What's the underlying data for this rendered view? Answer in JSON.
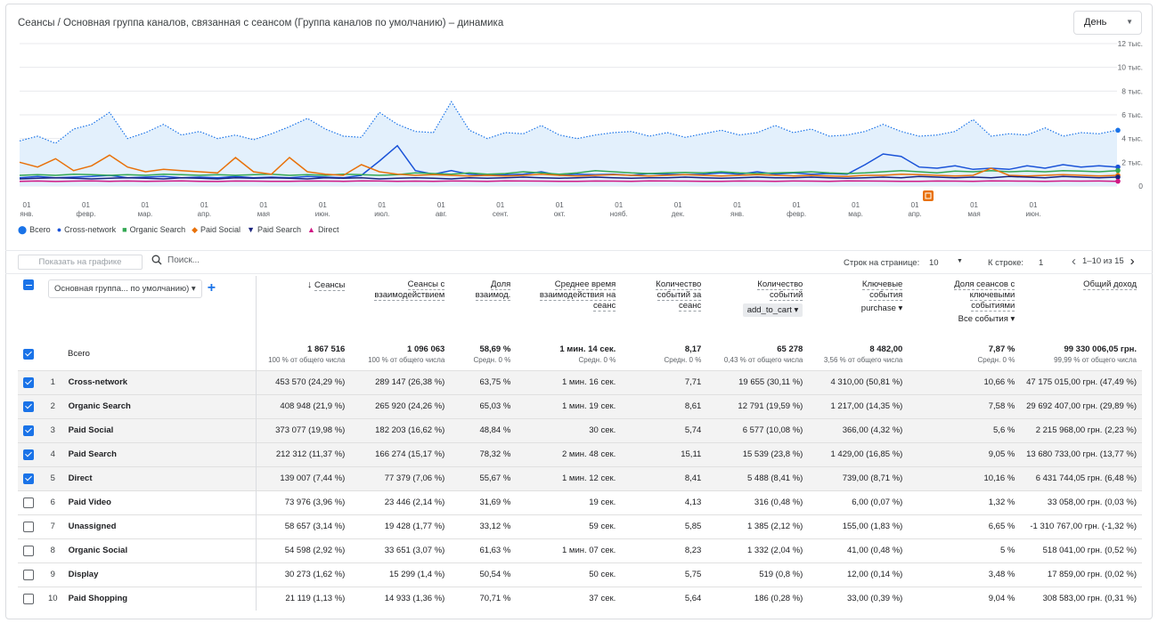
{
  "chart_title": "Сеансы / Основная группа каналов, связанная с сеансом (Группа каналов по умолчанию) – динамика",
  "period_select": "День",
  "chart_data": {
    "type": "line",
    "y_ticks": [
      "0",
      "2 тыс.",
      "4 тыс.",
      "6 тыс.",
      "8 тыс.",
      "10 тыс.",
      "12 тыс."
    ],
    "ylim": [
      0,
      12000
    ],
    "x_ticks": [
      {
        "day": "01",
        "month": "янв."
      },
      {
        "day": "01",
        "month": "февр."
      },
      {
        "day": "01",
        "month": "мар."
      },
      {
        "day": "01",
        "month": "апр."
      },
      {
        "day": "01",
        "month": "мая"
      },
      {
        "day": "01",
        "month": "июн."
      },
      {
        "day": "01",
        "month": "июл."
      },
      {
        "day": "01",
        "month": "авг."
      },
      {
        "day": "01",
        "month": "сент."
      },
      {
        "day": "01",
        "month": "окт."
      },
      {
        "day": "01",
        "month": "нояб."
      },
      {
        "day": "01",
        "month": "дек."
      },
      {
        "day": "01",
        "month": "янв."
      },
      {
        "day": "01",
        "month": "февр."
      },
      {
        "day": "01",
        "month": "мар."
      },
      {
        "day": "01",
        "month": "апр."
      },
      {
        "day": "01",
        "month": "мая"
      },
      {
        "day": "01",
        "month": "июн."
      }
    ],
    "series": [
      {
        "name": "Всего",
        "color": "#1a73e8",
        "marker": "teardrop",
        "style": "dotted-area",
        "values": [
          3800,
          4200,
          3600,
          4800,
          5200,
          6200,
          4000,
          4500,
          5200,
          4300,
          4600,
          4000,
          4300,
          3900,
          4400,
          5000,
          5700,
          4800,
          4200,
          4100,
          6200,
          5200,
          4600,
          4500,
          7100,
          4700,
          4000,
          4500,
          4400,
          5100,
          4300,
          4000,
          4300,
          4500,
          4600,
          4200,
          4500,
          4100,
          4400,
          4700,
          4300,
          4500,
          5100,
          4500,
          4800,
          4200,
          4300,
          4600,
          5200,
          4600,
          4200,
          4300,
          4600,
          5600,
          4200,
          4400,
          4300,
          4900,
          4200,
          4500,
          4400,
          4700
        ]
      },
      {
        "name": "Cross-network",
        "color": "#1a53d8",
        "marker": "circle",
        "values": [
          700,
          800,
          700,
          750,
          800,
          900,
          700,
          750,
          800,
          700,
          750,
          700,
          800,
          700,
          750,
          700,
          800,
          750,
          700,
          900,
          2100,
          3400,
          1300,
          1000,
          1300,
          1000,
          900,
          950,
          1000,
          1200,
          900,
          1000,
          950,
          1000,
          900,
          1050,
          1000,
          950,
          1000,
          1100,
          1000,
          1200,
          1000,
          1100,
          1000,
          1050,
          1000,
          1800,
          2700,
          2500,
          1600,
          1500,
          1700,
          1400,
          1500,
          1400,
          1700,
          1500,
          1800,
          1600,
          1700,
          1600
        ]
      },
      {
        "name": "Organic Search",
        "color": "#34a853",
        "marker": "square",
        "values": [
          900,
          950,
          900,
          1000,
          950,
          900,
          950,
          900,
          1000,
          950,
          900,
          950,
          900,
          950,
          1000,
          900,
          950,
          900,
          1000,
          950,
          900,
          950,
          1100,
          1050,
          1000,
          1100,
          1000,
          1050,
          1200,
          1100,
          1000,
          1100,
          1300,
          1200,
          1100,
          1050,
          1100,
          1150,
          1100,
          1200,
          1100,
          1050,
          1100,
          1150,
          1200,
          1100,
          1050,
          1100,
          1200,
          1300,
          1200,
          1100,
          1250,
          1200,
          1300,
          1200,
          1250,
          1200,
          1300,
          1250,
          1200,
          1300
        ]
      },
      {
        "name": "Paid Social",
        "color": "#e8710a",
        "marker": "diamond",
        "values": [
          2000,
          1600,
          2300,
          1300,
          1700,
          2600,
          1600,
          1200,
          1400,
          1300,
          1200,
          1100,
          2400,
          1200,
          1000,
          2400,
          1200,
          1000,
          900,
          1800,
          1200,
          1000,
          900,
          950,
          900,
          850,
          900,
          850,
          900,
          1000,
          900,
          850,
          900,
          950,
          900,
          850,
          900,
          950,
          900,
          850,
          900,
          950,
          900,
          850,
          900,
          850,
          800,
          900,
          900,
          1000,
          950,
          900,
          850,
          900,
          1500,
          900,
          850,
          900,
          950,
          900,
          850,
          900
        ]
      },
      {
        "name": "Paid Search",
        "color": "#1a237e",
        "marker": "triangle-down",
        "values": [
          600,
          650,
          700,
          650,
          600,
          650,
          700,
          650,
          600,
          700,
          650,
          600,
          700,
          650,
          700,
          650,
          600,
          700,
          650,
          700,
          600,
          650,
          700,
          650,
          600,
          700,
          650,
          700,
          750,
          700,
          650,
          700,
          750,
          700,
          650,
          700,
          700,
          750,
          700,
          650,
          700,
          750,
          700,
          700,
          750,
          700,
          650,
          700,
          750,
          700,
          800,
          750,
          700,
          750,
          700,
          800,
          750,
          700,
          800,
          750,
          700,
          750
        ]
      },
      {
        "name": "Direct",
        "color": "#d01884",
        "marker": "triangle-up",
        "values": [
          400,
          420,
          380,
          410,
          430,
          400,
          420,
          390,
          410,
          430,
          400,
          380,
          420,
          410,
          400,
          390,
          420,
          410,
          400,
          430,
          420,
          400,
          410,
          390,
          420,
          410,
          400,
          430,
          420,
          410,
          400,
          390,
          420,
          410,
          400,
          430,
          420,
          410,
          400,
          390,
          420,
          410,
          400,
          420,
          410,
          400,
          430,
          420,
          410,
          400,
          390,
          420,
          410,
          400,
          430,
          420,
          410,
          400,
          420,
          410,
          420,
          400
        ]
      }
    ],
    "legend": "bottom-left",
    "annotation": "event-marker"
  },
  "toolbar": {
    "show_on_chart": "Показать на графике",
    "search_placeholder": "Поиск...",
    "rows_per_page_label": "Строк на странице:",
    "rows_per_page": "10",
    "goto_label": "К строке:",
    "goto_value": "1",
    "range": "1–10 из 15"
  },
  "table": {
    "dimension_select": "Основная группа... по умолчанию)",
    "columns": [
      {
        "l1": "Сеансы",
        "l2": "",
        "l3": "",
        "sorted": true
      },
      {
        "l1": "Сеансы с",
        "l2": "взаимодействием",
        "l3": ""
      },
      {
        "l1": "Доля",
        "l2": "взаимод.",
        "l3": ""
      },
      {
        "l1": "Среднее время",
        "l2": "взаимодействия на",
        "l3": "сеанс"
      },
      {
        "l1": "Количество",
        "l2": "событий за",
        "l3": "сеанс"
      },
      {
        "l1": "Количество",
        "l2": "событий",
        "l3": "",
        "dropdown": "add_to_cart",
        "boxed": true
      },
      {
        "l1": "Ключевые",
        "l2": "события",
        "l3": "",
        "dropdown": "purchase"
      },
      {
        "l1": "Доля сеансов с",
        "l2": "ключевыми",
        "l3": "событиями",
        "dropdown": "Все события"
      },
      {
        "l1": "Общий доход",
        "l2": "",
        "l3": ""
      }
    ],
    "total_label": "Всего",
    "totals": [
      {
        "v": "1 867 516",
        "s": "100 % от общего числа"
      },
      {
        "v": "1 096 063",
        "s": "100 % от общего числа"
      },
      {
        "v": "58,69 %",
        "s": "Средн. 0 %"
      },
      {
        "v": "1 мин. 14 сек.",
        "s": "Средн. 0 %"
      },
      {
        "v": "8,17",
        "s": "Средн. 0 %"
      },
      {
        "v": "65 278",
        "s": "0,43 % от общего числа"
      },
      {
        "v": "8 482,00",
        "s": "3,56 % от общего числа"
      },
      {
        "v": "7,87 %",
        "s": "Средн. 0 %"
      },
      {
        "v": "99 330 006,05 грн.",
        "s": "99,99 % от общего числа"
      }
    ],
    "rows": [
      {
        "i": "1",
        "ch": "Cross-network",
        "sel": true,
        "c": [
          "453 570 (24,29 %)",
          "289 147 (26,38 %)",
          "63,75 %",
          "1 мин. 16 сек.",
          "7,71",
          "19 655 (30,11 %)",
          "4 310,00 (50,81 %)",
          "10,66 %",
          "47 175 015,00 грн. (47,49 %)"
        ]
      },
      {
        "i": "2",
        "ch": "Organic Search",
        "sel": true,
        "c": [
          "408 948 (21,9 %)",
          "265 920 (24,26 %)",
          "65,03 %",
          "1 мин. 19 сек.",
          "8,61",
          "12 791 (19,59 %)",
          "1 217,00 (14,35 %)",
          "7,58 %",
          "29 692 407,00 грн. (29,89 %)"
        ]
      },
      {
        "i": "3",
        "ch": "Paid Social",
        "sel": true,
        "c": [
          "373 077 (19,98 %)",
          "182 203 (16,62 %)",
          "48,84 %",
          "30 сек.",
          "5,74",
          "6 577 (10,08 %)",
          "366,00 (4,32 %)",
          "5,6 %",
          "2 215 968,00 грн. (2,23 %)"
        ]
      },
      {
        "i": "4",
        "ch": "Paid Search",
        "sel": true,
        "c": [
          "212 312 (11,37 %)",
          "166 274 (15,17 %)",
          "78,32 %",
          "2 мин. 48 сек.",
          "15,11",
          "15 539 (23,8 %)",
          "1 429,00 (16,85 %)",
          "9,05 %",
          "13 680 733,00 грн. (13,77 %)"
        ]
      },
      {
        "i": "5",
        "ch": "Direct",
        "sel": true,
        "c": [
          "139 007 (7,44 %)",
          "77 379 (7,06 %)",
          "55,67 %",
          "1 мин. 12 сек.",
          "8,41",
          "5 488 (8,41 %)",
          "739,00 (8,71 %)",
          "10,16 %",
          "6 431 744,05 грн. (6,48 %)"
        ]
      },
      {
        "i": "6",
        "ch": "Paid Video",
        "sel": false,
        "c": [
          "73 976 (3,96 %)",
          "23 446 (2,14 %)",
          "31,69 %",
          "19 сек.",
          "4,13",
          "316 (0,48 %)",
          "6,00 (0,07 %)",
          "1,32 %",
          "33 058,00 грн. (0,03 %)"
        ]
      },
      {
        "i": "7",
        "ch": "Unassigned",
        "sel": false,
        "c": [
          "58 657 (3,14 %)",
          "19 428 (1,77 %)",
          "33,12 %",
          "59 сек.",
          "5,85",
          "1 385 (2,12 %)",
          "155,00 (1,83 %)",
          "6,65 %",
          "-1 310 767,00 грн. (-1,32 %)"
        ]
      },
      {
        "i": "8",
        "ch": "Organic Social",
        "sel": false,
        "c": [
          "54 598 (2,92 %)",
          "33 651 (3,07 %)",
          "61,63 %",
          "1 мин. 07 сек.",
          "8,23",
          "1 332 (2,04 %)",
          "41,00 (0,48 %)",
          "5 %",
          "518 041,00 грн. (0,52 %)"
        ]
      },
      {
        "i": "9",
        "ch": "Display",
        "sel": false,
        "c": [
          "30 273 (1,62 %)",
          "15 299 (1,4 %)",
          "50,54 %",
          "50 сек.",
          "5,75",
          "519 (0,8 %)",
          "12,00 (0,14 %)",
          "3,48 %",
          "17 859,00 грн. (0,02 %)"
        ]
      },
      {
        "i": "10",
        "ch": "Paid Shopping",
        "sel": false,
        "c": [
          "21 119 (1,13 %)",
          "14 933 (1,36 %)",
          "70,71 %",
          "37 сек.",
          "5,64",
          "186 (0,28 %)",
          "33,00 (0,39 %)",
          "9,04 %",
          "308 583,00 грн. (0,31 %)"
        ]
      }
    ]
  }
}
